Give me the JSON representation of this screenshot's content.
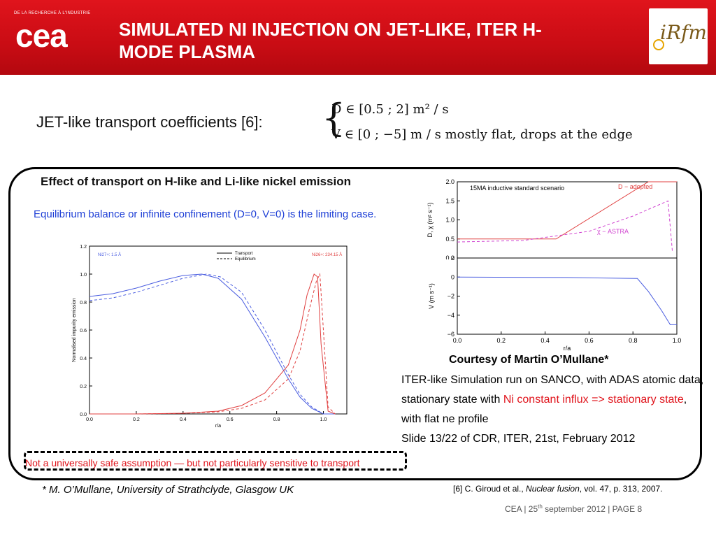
{
  "header": {
    "org_tagline": "DE LA RECHERCHE À L'INDUSTRIE",
    "org_logo": "cea",
    "title_line1": "SIMULATED NI INJECTION ON JET-LIKE, ITER H-",
    "title_line2": "MODE PLASMA",
    "partner_logo": "iRfm"
  },
  "intro": {
    "text": "JET-like transport coefficients [6]:",
    "eq1": "D ∈ [0.5 ; 2]   m² / s",
    "eq2": "V ∈ [0 ; −5]   m / s   mostly flat, drops at the edge"
  },
  "panel": {
    "title": "Effect of transport on H-like and Li-like nickel emission",
    "subtitle": "Equilibrium balance or infinite confinement (D=0, V=0) is the limiting case."
  },
  "courtesy": {
    "title": "Courtesy of Martin O’Mullane*",
    "body_part1": "ITER-like Simulation run on SANCO, with ADAS atomic data, stationary state with ",
    "body_highlight": "Ni constant influx => stationary state",
    "body_part2": ", with flat ne profile",
    "body_line4": "Slide 13/22 of CDR, ITER, 21st, February 2012"
  },
  "warning": "Not a universally safe assumption — but not particularly sensitive to transport",
  "footnote_left": "* M. O’Mullane, University of Strathclyde, Glasgow UK",
  "footnote_right_pre": "[6] C. Giroud et al., ",
  "footnote_right_journal": "Nuclear fusion",
  "footnote_right_post": ", vol. 47, p. 313, 2007.",
  "footer": {
    "pre": "CEA | 25",
    "sup": "th",
    "post": " september 2012 |  PAGE 8"
  },
  "chart_data": [
    {
      "type": "line",
      "xlabel": "r/a",
      "ylabel": "Normalised impurity emission",
      "xlim": [
        0.0,
        1.1
      ],
      "ylim": [
        0.0,
        1.2
      ],
      "xticks": [
        "0.0",
        "0.2",
        "0.4",
        "0.6",
        "0.8",
        "1.0"
      ],
      "yticks": [
        "0.0",
        "0.2",
        "0.4",
        "0.6",
        "0.8",
        "1.0",
        "1.2"
      ],
      "label_left": "Ni27+: 1.5 Å",
      "label_right": "Ni26+: 234.15 Å",
      "legend": [
        "Transport",
        "Equilibrium"
      ],
      "series": [
        {
          "name": "Transport",
          "ion": "Ni27+",
          "color": "#4a5de0",
          "dash": false,
          "x": [
            0.0,
            0.1,
            0.2,
            0.3,
            0.4,
            0.48,
            0.55,
            0.65,
            0.75,
            0.85,
            0.9,
            0.95,
            1.0,
            1.05
          ],
          "y": [
            0.84,
            0.86,
            0.9,
            0.95,
            0.99,
            1.0,
            0.97,
            0.82,
            0.55,
            0.25,
            0.12,
            0.04,
            0.0,
            0.0
          ]
        },
        {
          "name": "Equilibrium",
          "ion": "Ni27+",
          "color": "#4a5de0",
          "dash": true,
          "x": [
            0.0,
            0.1,
            0.2,
            0.3,
            0.4,
            0.5,
            0.56,
            0.65,
            0.75,
            0.85,
            0.9,
            0.95,
            1.0,
            1.05
          ],
          "y": [
            0.81,
            0.83,
            0.87,
            0.92,
            0.97,
            1.0,
            0.98,
            0.87,
            0.6,
            0.28,
            0.14,
            0.05,
            0.0,
            0.0
          ]
        },
        {
          "name": "Transport",
          "ion": "Ni26+",
          "color": "#e04040",
          "dash": false,
          "x": [
            0.0,
            0.2,
            0.4,
            0.55,
            0.65,
            0.75,
            0.85,
            0.9,
            0.93,
            0.96,
            0.975,
            0.99,
            1.02,
            1.05
          ],
          "y": [
            0.0,
            0.0,
            0.005,
            0.02,
            0.06,
            0.15,
            0.35,
            0.6,
            0.85,
            1.0,
            0.98,
            0.5,
            0.02,
            0.0
          ]
        },
        {
          "name": "Equilibrium",
          "ion": "Ni26+",
          "color": "#e04040",
          "dash": true,
          "x": [
            0.0,
            0.2,
            0.4,
            0.55,
            0.65,
            0.75,
            0.85,
            0.9,
            0.94,
            0.97,
            0.985,
            1.0,
            1.02,
            1.05
          ],
          "y": [
            0.0,
            0.0,
            0.004,
            0.015,
            0.04,
            0.1,
            0.25,
            0.45,
            0.75,
            0.95,
            1.0,
            0.6,
            0.05,
            0.0
          ]
        }
      ]
    },
    {
      "type": "line",
      "title": "15MA inductive standard scenario",
      "ylabel": "D, χ (m² s⁻¹)",
      "xlim": [
        0.0,
        1.0
      ],
      "ylim": [
        0.0,
        2.0
      ],
      "yticks": [
        "0.0",
        "0.5",
        "1.0",
        "1.5",
        "2.0"
      ],
      "series": [
        {
          "name": "D − adopted",
          "color": "#e04040",
          "dash": false,
          "x": [
            0.0,
            0.45,
            0.87,
            1.0
          ],
          "y": [
            0.5,
            0.5,
            2.0,
            2.0
          ]
        },
        {
          "name": "χ − ASTRA",
          "color": "#d040d0",
          "dash": true,
          "x": [
            0.0,
            0.3,
            0.6,
            0.8,
            0.9,
            0.96,
            0.98
          ],
          "y": [
            0.42,
            0.46,
            0.7,
            1.1,
            1.35,
            1.5,
            0.15
          ]
        }
      ]
    },
    {
      "type": "line",
      "xlabel": "r/a",
      "ylabel": "V (m s⁻¹)",
      "xlim": [
        0.0,
        1.0
      ],
      "ylim": [
        -6,
        2
      ],
      "xticks": [
        "0.0",
        "0.2",
        "0.4",
        "0.6",
        "0.8",
        "1.0"
      ],
      "yticks": [
        "−6",
        "−4",
        "−2",
        "0",
        "2"
      ],
      "series": [
        {
          "name": "V",
          "color": "#4a5de0",
          "dash": false,
          "x": [
            0.0,
            0.5,
            0.82,
            0.87,
            0.93,
            0.97,
            1.0
          ],
          "y": [
            0.0,
            -0.05,
            -0.15,
            -1.5,
            -3.5,
            -5.0,
            -5.0
          ]
        }
      ]
    }
  ]
}
